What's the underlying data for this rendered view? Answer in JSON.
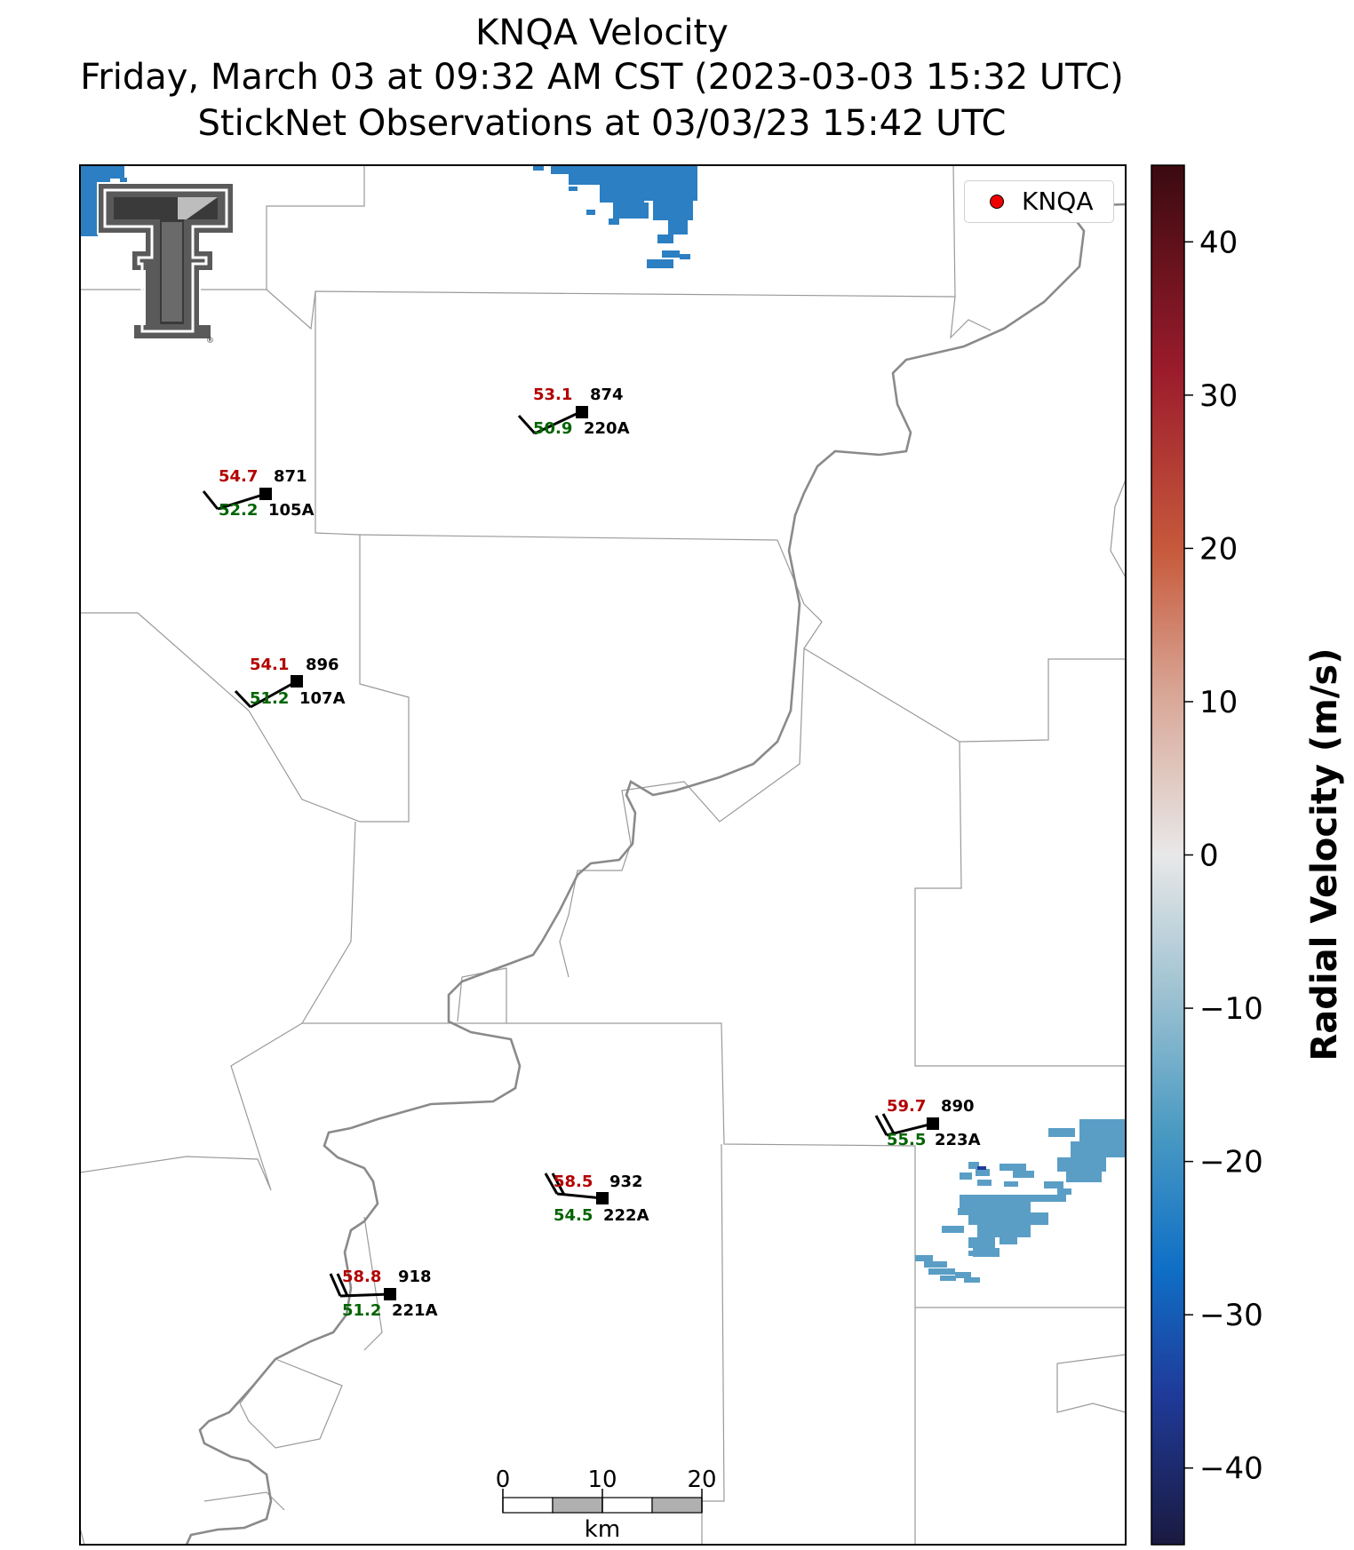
{
  "title": {
    "line1": "KNQA Velocity",
    "line2": "Friday, March 03 at 09:32 AM CST (2023-03-03 15:32 UTC)",
    "line3": "StickNet Observations at 03/03/23 15:42 UTC"
  },
  "legend": {
    "label": "KNQA",
    "marker_color": "#ee0000"
  },
  "logo": {
    "text": "Texas Tech Double T",
    "mark": "®"
  },
  "colorbar": {
    "label": "Radial Velocity (m/s)",
    "ticks": [
      "40",
      "30",
      "20",
      "10",
      "0",
      "−10",
      "−20",
      "−30",
      "−40"
    ],
    "range": [
      -45,
      45
    ],
    "colors": [
      "#1a1a40",
      "#1f3b9a",
      "#0f6fc6",
      "#4a9ac2",
      "#9ec2d2",
      "#e8e8e8",
      "#d8a493",
      "#c75a3c",
      "#9c1c2c",
      "#3a0a10"
    ]
  },
  "scalebar": {
    "labels": [
      "0",
      "10",
      "20"
    ],
    "unit": "km"
  },
  "stations": [
    {
      "id": "874",
      "probe": "220A",
      "temp": "53.1",
      "dew": "50.9"
    },
    {
      "id": "871",
      "probe": "105A",
      "temp": "54.7",
      "dew": "52.2"
    },
    {
      "id": "896",
      "probe": "107A",
      "temp": "54.1",
      "dew": "51.2"
    },
    {
      "id": "890",
      "probe": "223A",
      "temp": "59.7",
      "dew": "55.5"
    },
    {
      "id": "932",
      "probe": "222A",
      "temp": "58.5",
      "dew": "54.5"
    },
    {
      "id": "918",
      "probe": "221A",
      "temp": "58.8",
      "dew": "51.2"
    }
  ],
  "colors": {
    "river": "#8a8a8a",
    "county": "#9a9a9a",
    "temp": "#b30000",
    "dew": "#006400",
    "echo_blue": "#2c7fc2",
    "echo_light": "#5a9ec6"
  }
}
